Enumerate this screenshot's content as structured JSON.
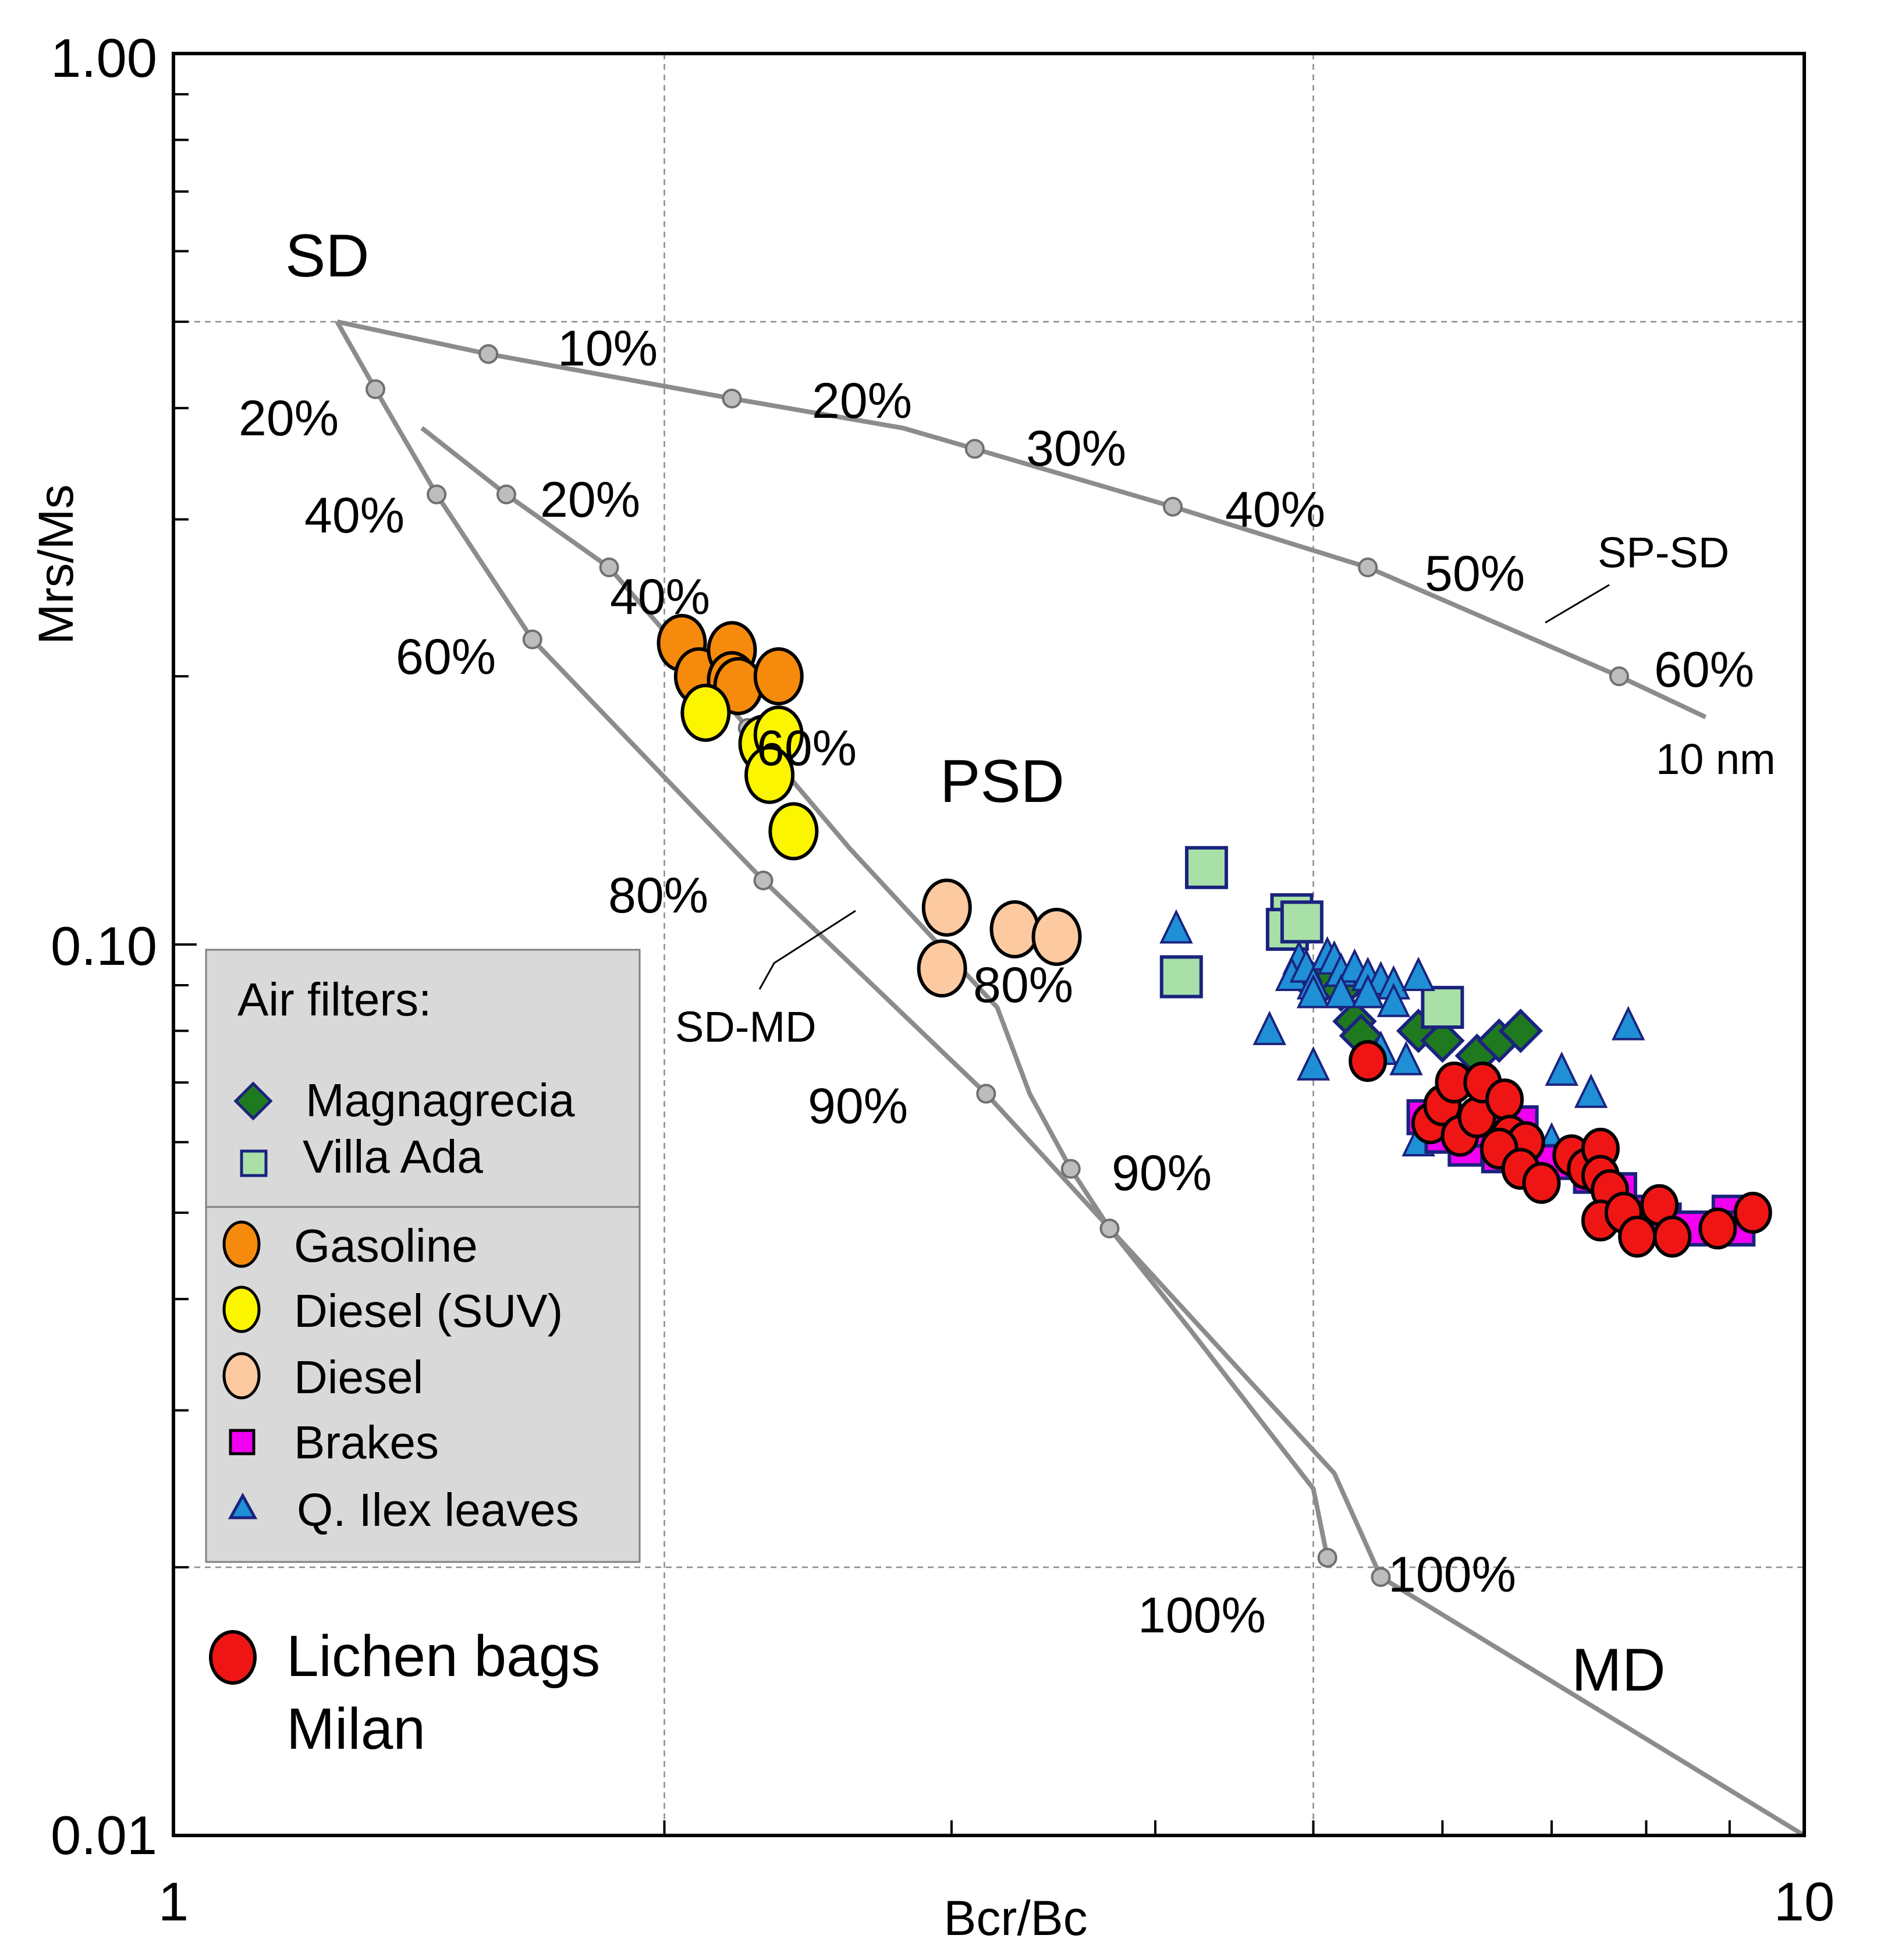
{
  "chart_data": {
    "type": "scatter",
    "title": "",
    "xlabel": "Bcr/Bc",
    "ylabel": "Mrs/Ms",
    "xscale": "log",
    "yscale": "log",
    "xlim": [
      1,
      10
    ],
    "ylim": [
      0.01,
      1.0
    ],
    "x_tick_labels": [
      {
        "value": 1,
        "label": "1"
      },
      {
        "value": 10,
        "label": "10"
      }
    ],
    "y_tick_labels": [
      {
        "value": 1.0,
        "label": "1.00"
      },
      {
        "value": 0.1,
        "label": "0.10"
      },
      {
        "value": 0.01,
        "label": "0.01"
      }
    ],
    "gridlines": {
      "x": [
        2,
        5
      ],
      "y": [
        0.5,
        0.02
      ]
    },
    "region_labels": [
      {
        "text": "SD",
        "x": 1.24,
        "y": 0.6
      },
      {
        "text": "PSD",
        "x": 2.7,
        "y": 0.145
      },
      {
        "text": "MD",
        "x": 7.5,
        "y": 0.016
      }
    ],
    "curve_labels": [
      {
        "text": "SP-SD",
        "x": 7.4,
        "y": 0.31
      },
      {
        "text": "10 nm",
        "x": 8.6,
        "y": 0.155
      },
      {
        "text": "SD-MD",
        "x": 1.96,
        "y": 0.077
      }
    ],
    "curves": [
      {
        "name": "SP-SD",
        "points": [
          [
            1.26,
            0.5
          ],
          [
            1.56,
            0.46
          ],
          [
            2.2,
            0.41
          ],
          [
            2.8,
            0.38
          ],
          [
            3.1,
            0.36
          ],
          [
            4.1,
            0.31
          ],
          [
            5.4,
            0.265
          ],
          [
            7.7,
            0.2
          ],
          [
            8.7,
            0.18
          ]
        ],
        "markers": [
          {
            "x": 1.56,
            "y": 0.46,
            "label": "10%"
          },
          {
            "x": 2.2,
            "y": 0.41,
            "label": "20%"
          },
          {
            "x": 3.1,
            "y": 0.36,
            "label": "30%"
          },
          {
            "x": 4.1,
            "y": 0.31,
            "label": "40%"
          },
          {
            "x": 5.4,
            "y": 0.265,
            "label": "50%"
          },
          {
            "x": 7.7,
            "y": 0.2,
            "label": "60%"
          }
        ]
      },
      {
        "name": "SD-MD outer",
        "points": [
          [
            1.26,
            0.5
          ],
          [
            1.33,
            0.42
          ],
          [
            1.45,
            0.32
          ],
          [
            1.66,
            0.22
          ],
          [
            2.3,
            0.118
          ],
          [
            3.15,
            0.068
          ],
          [
            5.15,
            0.0255
          ],
          [
            5.5,
            0.0195
          ],
          [
            10.0,
            0.01
          ]
        ],
        "markers": [
          {
            "x": 1.33,
            "y": 0.42,
            "label": "20%"
          },
          {
            "x": 1.45,
            "y": 0.32,
            "label": "40%"
          },
          {
            "x": 1.66,
            "y": 0.22,
            "label": "60%"
          },
          {
            "x": 2.3,
            "y": 0.118,
            "label": "80%"
          },
          {
            "x": 3.15,
            "y": 0.068,
            "label": "90%"
          },
          {
            "x": 5.5,
            "y": 0.0195,
            "label": "100%"
          }
        ]
      },
      {
        "name": "SD-MD inner",
        "points": [
          [
            1.42,
            0.38
          ],
          [
            1.6,
            0.32
          ],
          [
            1.85,
            0.265
          ],
          [
            2.25,
            0.175
          ],
          [
            2.6,
            0.128
          ],
          [
            3.2,
            0.085
          ],
          [
            3.35,
            0.068
          ],
          [
            3.55,
            0.056
          ],
          [
            3.75,
            0.048
          ],
          [
            4.2,
            0.037
          ],
          [
            5.0,
            0.0245
          ],
          [
            5.1,
            0.0205
          ]
        ],
        "markers": [
          {
            "x": 1.6,
            "y": 0.32,
            "label": "20%"
          },
          {
            "x": 1.85,
            "y": 0.265,
            "label": "40%"
          },
          {
            "x": 2.25,
            "y": 0.175,
            "label": "60%"
          },
          {
            "x": 3.55,
            "y": 0.056,
            "label": "80%"
          },
          {
            "x": 3.75,
            "y": 0.048,
            "label": "90%"
          },
          {
            "x": 5.1,
            "y": 0.0205,
            "label": "100%"
          }
        ]
      }
    ],
    "legend": {
      "title": "Air filters:",
      "position": "lower-left",
      "entries": [
        "Magnagrecia",
        "Villa Ada",
        "Gasoline",
        "Diesel (SUV)",
        "Diesel",
        "Brakes",
        "Q. Ilex leaves"
      ],
      "extra": [
        "Lichen bags",
        "Milan"
      ]
    },
    "series": [
      {
        "name": "Gasoline",
        "marker": "circle",
        "color": "#f58a0c",
        "points": [
          [
            2.05,
            0.218
          ],
          [
            2.1,
            0.2
          ],
          [
            2.2,
            0.214
          ],
          [
            2.2,
            0.198
          ],
          [
            2.22,
            0.195
          ],
          [
            2.35,
            0.2
          ]
        ]
      },
      {
        "name": "Diesel (SUV)",
        "marker": "circle",
        "color": "#fcf500",
        "points": [
          [
            2.12,
            0.182
          ],
          [
            2.3,
            0.168
          ],
          [
            2.35,
            0.172
          ],
          [
            2.32,
            0.155
          ],
          [
            2.4,
            0.134
          ]
        ]
      },
      {
        "name": "Diesel",
        "marker": "circle",
        "color": "#fcc9a0",
        "points": [
          [
            2.98,
            0.11
          ],
          [
            3.28,
            0.104
          ],
          [
            3.48,
            0.102
          ],
          [
            2.96,
            0.094
          ]
        ]
      },
      {
        "name": "Magnagrecia",
        "marker": "diamond",
        "color": "#1f7a1f",
        "points": [
          [
            4.95,
            0.092
          ],
          [
            5.05,
            0.09
          ],
          [
            5.1,
            0.093
          ],
          [
            5.2,
            0.089
          ],
          [
            5.3,
            0.082
          ],
          [
            5.35,
            0.079
          ],
          [
            5.8,
            0.08
          ],
          [
            6.0,
            0.078
          ],
          [
            6.3,
            0.075
          ],
          [
            6.5,
            0.078
          ],
          [
            6.7,
            0.08
          ]
        ]
      },
      {
        "name": "Villa Ada",
        "marker": "square",
        "color": "#a8e0a8",
        "points": [
          [
            4.3,
            0.122
          ],
          [
            4.15,
            0.092
          ],
          [
            4.85,
            0.108
          ],
          [
            4.82,
            0.104
          ],
          [
            4.92,
            0.106
          ],
          [
            6.0,
            0.085
          ]
        ]
      },
      {
        "name": "Q. Ilex leaves",
        "marker": "triangle",
        "color": "#1f8fd6",
        "points": [
          [
            4.12,
            0.104
          ],
          [
            4.9,
            0.096
          ],
          [
            4.85,
            0.092
          ],
          [
            4.95,
            0.094
          ],
          [
            5.0,
            0.09
          ],
          [
            5.1,
            0.097
          ],
          [
            5.15,
            0.096
          ],
          [
            5.2,
            0.093
          ],
          [
            5.3,
            0.094
          ],
          [
            5.4,
            0.092
          ],
          [
            5.5,
            0.091
          ],
          [
            5.6,
            0.09
          ],
          [
            5.8,
            0.092
          ],
          [
            5.0,
            0.088
          ],
          [
            5.2,
            0.088
          ],
          [
            5.4,
            0.088
          ],
          [
            5.6,
            0.086
          ],
          [
            4.7,
            0.08
          ],
          [
            5.0,
            0.073
          ],
          [
            5.5,
            0.076
          ],
          [
            5.7,
            0.074
          ],
          [
            6.2,
            0.07
          ],
          [
            6.4,
            0.068
          ],
          [
            6.6,
            0.066
          ],
          [
            7.1,
            0.072
          ],
          [
            7.4,
            0.068
          ],
          [
            7.8,
            0.081
          ],
          [
            5.8,
            0.06
          ],
          [
            6.1,
            0.062
          ],
          [
            6.7,
            0.063
          ],
          [
            7.0,
            0.06
          ]
        ]
      },
      {
        "name": "Brakes",
        "marker": "square",
        "color": "#f000f0",
        "points": [
          [
            5.85,
            0.064
          ],
          [
            6.0,
            0.061
          ],
          [
            6.2,
            0.059
          ],
          [
            6.5,
            0.058
          ],
          [
            6.35,
            0.062
          ],
          [
            6.7,
            0.063
          ],
          [
            7.0,
            0.057
          ],
          [
            7.4,
            0.055
          ],
          [
            7.7,
            0.053
          ],
          [
            8.0,
            0.05
          ],
          [
            8.2,
            0.049
          ],
          [
            8.5,
            0.048
          ],
          [
            9.0,
            0.05
          ],
          [
            9.1,
            0.048
          ]
        ]
      },
      {
        "name": "Lichen bags Milan",
        "marker": "circle",
        "color": "#f01515",
        "points": [
          [
            5.4,
            0.074
          ],
          [
            5.9,
            0.063
          ],
          [
            6.0,
            0.066
          ],
          [
            6.15,
            0.061
          ],
          [
            6.3,
            0.064
          ],
          [
            6.1,
            0.07
          ],
          [
            6.35,
            0.07
          ],
          [
            6.55,
            0.067
          ],
          [
            6.6,
            0.061
          ],
          [
            6.75,
            0.06
          ],
          [
            6.5,
            0.059
          ],
          [
            6.7,
            0.056
          ],
          [
            6.9,
            0.054
          ],
          [
            7.2,
            0.058
          ],
          [
            7.35,
            0.056
          ],
          [
            7.5,
            0.059
          ],
          [
            7.5,
            0.055
          ],
          [
            7.6,
            0.053
          ],
          [
            7.5,
            0.049
          ],
          [
            7.75,
            0.05
          ],
          [
            7.9,
            0.047
          ],
          [
            8.15,
            0.051
          ],
          [
            8.3,
            0.047
          ],
          [
            8.85,
            0.048
          ],
          [
            9.3,
            0.05
          ]
        ]
      }
    ]
  }
}
